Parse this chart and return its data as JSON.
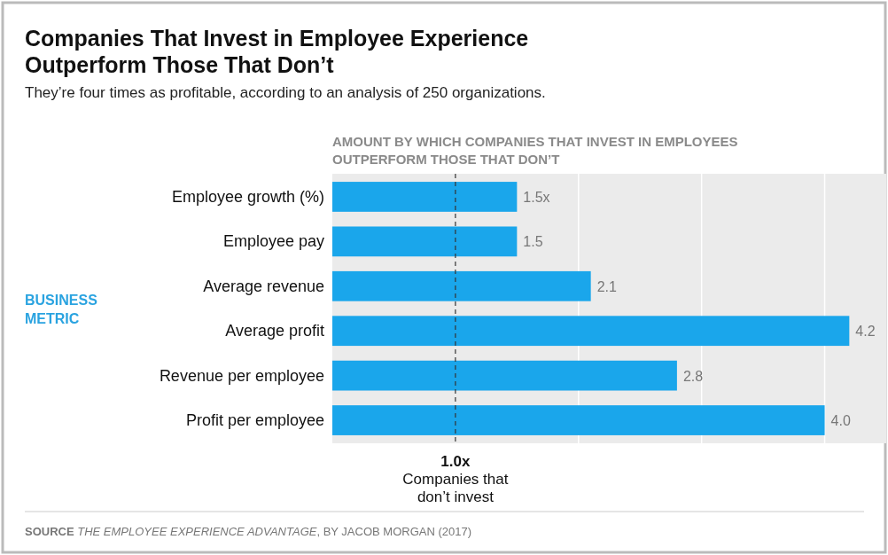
{
  "chart_data": {
    "type": "bar",
    "orientation": "horizontal",
    "title": "Companies That Invest in Employee Experience Outperform Those That Don’t",
    "subtitle": "They’re four times as profitable, according to an analysis of 250 organizations.",
    "xlabel": "AMOUNT BY WHICH COMPANIES THAT INVEST IN EMPLOYEES OUTPERFORM THOSE THAT DON’T",
    "ylabel": "BUSINESS METRIC",
    "categories": [
      "Employee growth (%)",
      "Employee pay",
      "Average revenue",
      "Average profit",
      "Revenue per employee",
      "Profit per employee"
    ],
    "values": [
      1.5,
      1.5,
      2.1,
      4.2,
      2.8,
      4.0
    ],
    "value_labels": [
      "1.5x",
      "1.5",
      "2.1",
      "4.2",
      "2.8",
      "4.0"
    ],
    "color": "#1aa6eb",
    "xlim": [
      0,
      4.5
    ],
    "xticks": [
      {
        "value": 2,
        "label": null
      },
      {
        "value": 3,
        "label": null
      },
      {
        "value": 4,
        "label": null
      }
    ],
    "grid": "x",
    "tick_labels": "y",
    "ref_lines": [
      {
        "axis": "x",
        "value": 1,
        "label": "1.0x",
        "line_style": "dashed",
        "color": "#333333"
      }
    ],
    "annotations": [
      "Companies that don’t invest",
      "SOURCE THE EMPLOYEE EXPERIENCE ADVANTAGE, BY JACOB MORGAN (2017)"
    ]
  }
}
